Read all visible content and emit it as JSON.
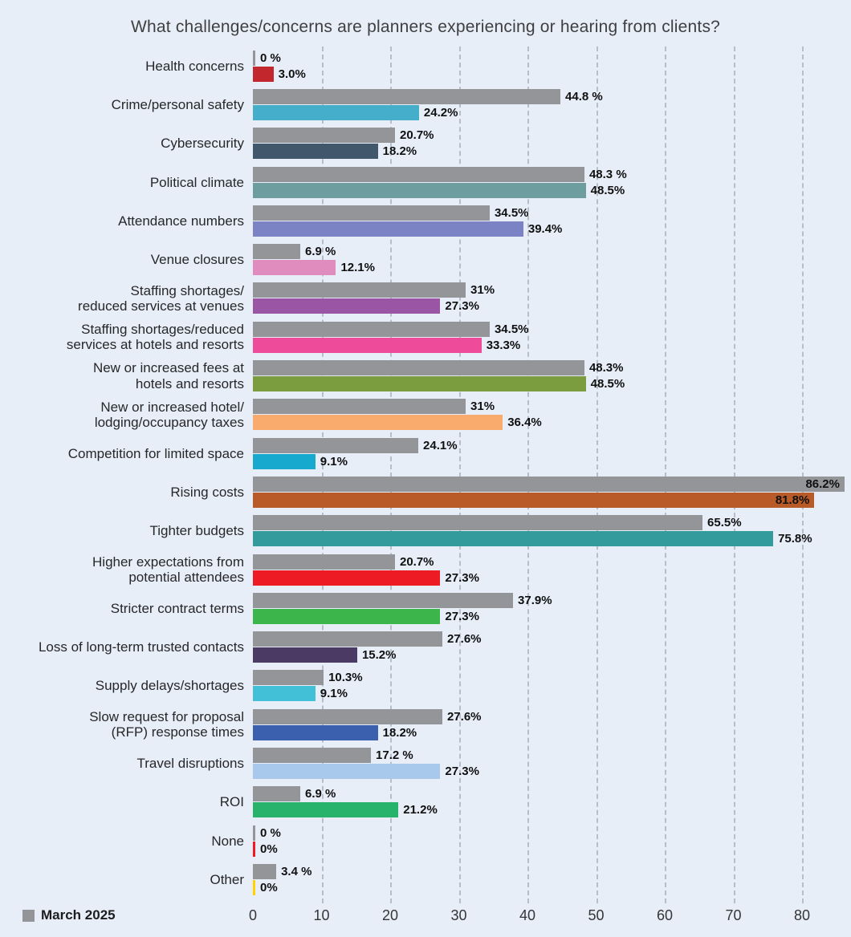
{
  "title": "What challenges/concerns are planners experiencing or hearing from clients?",
  "legend": {
    "items": [
      {
        "label": "March 2025",
        "color": "#939598"
      }
    ]
  },
  "colors": {
    "background": "#e7eef8",
    "gridline": "#b7bec9",
    "march_2025_bar": "#939598",
    "value_label": "#101010"
  },
  "chart_data": {
    "type": "bar",
    "orientation": "horizontal",
    "title": "What challenges/concerns are planners experiencing or hearing from clients?",
    "xlabel": "",
    "ylabel": "",
    "xlim": [
      0,
      87
    ],
    "x_axis_ticks": [
      "0",
      "10",
      "20",
      "30",
      "40",
      "50",
      "60",
      "70",
      "80"
    ],
    "grid": "vertical-dashed",
    "legend_position": "bottom-left",
    "series_note_visible_legend": "March 2025 (gray, top bar of each pair); second bar of each pair is individually colored with no visible legend entry",
    "categories": [
      {
        "label": "Health concerns",
        "bars": [
          {
            "value": 0,
            "display": "0 %",
            "color": "#939598"
          },
          {
            "value": 3.0,
            "display": "3.0%",
            "color": "#c1272d"
          }
        ]
      },
      {
        "label": "Crime/personal safety",
        "bars": [
          {
            "value": 44.8,
            "display": "44.8 %",
            "color": "#939598"
          },
          {
            "value": 24.2,
            "display": "24.2%",
            "color": "#45aecb"
          }
        ]
      },
      {
        "label": "Cybersecurity",
        "bars": [
          {
            "value": 20.7,
            "display": "20.7%",
            "color": "#939598"
          },
          {
            "value": 18.2,
            "display": "18.2%",
            "color": "#41576b"
          }
        ]
      },
      {
        "label": "Political climate",
        "bars": [
          {
            "value": 48.3,
            "display": "48.3 %",
            "color": "#939598"
          },
          {
            "value": 48.5,
            "display": "48.5%",
            "color": "#6d9d9e"
          }
        ]
      },
      {
        "label": "Attendance numbers",
        "bars": [
          {
            "value": 34.5,
            "display": "34.5%",
            "color": "#939598"
          },
          {
            "value": 39.4,
            "display": "39.4%",
            "color": "#7b83c4"
          }
        ]
      },
      {
        "label": "Venue closures",
        "bars": [
          {
            "value": 6.9,
            "display": "6.9 %",
            "color": "#939598"
          },
          {
            "value": 12.1,
            "display": "12.1%",
            "color": "#e18cbe"
          }
        ]
      },
      {
        "label": "Staffing shortages/\nreduced services at venues",
        "bars": [
          {
            "value": 31,
            "display": "31%",
            "color": "#939598"
          },
          {
            "value": 27.3,
            "display": "27.3%",
            "color": "#9a55a5"
          }
        ]
      },
      {
        "label": "Staffing shortages/reduced\nservices at hotels and resorts",
        "bars": [
          {
            "value": 34.5,
            "display": "34.5%",
            "color": "#939598"
          },
          {
            "value": 33.3,
            "display": "33.3%",
            "color": "#ee4c9b"
          }
        ]
      },
      {
        "label": "New or increased fees at\nhotels and resorts",
        "bars": [
          {
            "value": 48.3,
            "display": "48.3%",
            "color": "#939598"
          },
          {
            "value": 48.5,
            "display": "48.5%",
            "color": "#7b9d40"
          }
        ]
      },
      {
        "label": "New or increased hotel/\nlodging/occupancy taxes",
        "bars": [
          {
            "value": 31,
            "display": "31%",
            "color": "#939598"
          },
          {
            "value": 36.4,
            "display": "36.4%",
            "color": "#f9ab6d"
          }
        ]
      },
      {
        "label": "Competition for limited space",
        "bars": [
          {
            "value": 24.1,
            "display": "24.1%",
            "color": "#939598"
          },
          {
            "value": 9.1,
            "display": "9.1%",
            "color": "#17a9ce"
          }
        ]
      },
      {
        "label": "Rising costs",
        "bars": [
          {
            "value": 86.2,
            "display": "86.2%",
            "color": "#939598"
          },
          {
            "value": 81.8,
            "display": "81.8%",
            "color": "#b85b28"
          }
        ]
      },
      {
        "label": "Tighter budgets",
        "bars": [
          {
            "value": 65.5,
            "display": "65.5%",
            "color": "#939598"
          },
          {
            "value": 75.8,
            "display": "75.8%",
            "color": "#339b9b"
          }
        ]
      },
      {
        "label": "Higher expectations from\npotential attendees",
        "bars": [
          {
            "value": 20.7,
            "display": "20.7%",
            "color": "#939598"
          },
          {
            "value": 27.3,
            "display": "27.3%",
            "color": "#ed1c24"
          }
        ]
      },
      {
        "label": "Stricter contract terms",
        "bars": [
          {
            "value": 37.9,
            "display": "37.9%",
            "color": "#939598"
          },
          {
            "value": 27.3,
            "display": "27.3%",
            "color": "#3cb54a"
          }
        ]
      },
      {
        "label": "Loss of long-term trusted contacts",
        "bars": [
          {
            "value": 27.6,
            "display": "27.6%",
            "color": "#939598"
          },
          {
            "value": 15.2,
            "display": "15.2%",
            "color": "#4a3a64"
          }
        ]
      },
      {
        "label": "Supply delays/shortages",
        "bars": [
          {
            "value": 10.3,
            "display": "10.3%",
            "color": "#939598"
          },
          {
            "value": 9.1,
            "display": "9.1%",
            "color": "#41c0d8"
          }
        ]
      },
      {
        "label": "Slow request for proposal\n(RFP) response times",
        "bars": [
          {
            "value": 27.6,
            "display": "27.6%",
            "color": "#939598"
          },
          {
            "value": 18.2,
            "display": "18.2%",
            "color": "#3b61ae"
          }
        ]
      },
      {
        "label": "Travel disruptions",
        "bars": [
          {
            "value": 17.2,
            "display": "17.2 %",
            "color": "#939598"
          },
          {
            "value": 27.3,
            "display": "27.3%",
            "color": "#a8c8ec"
          }
        ]
      },
      {
        "label": "ROI",
        "bars": [
          {
            "value": 6.9,
            "display": "6.9 %",
            "color": "#939598"
          },
          {
            "value": 21.2,
            "display": "21.2%",
            "color": "#27b36b"
          }
        ]
      },
      {
        "label": "None",
        "bars": [
          {
            "value": 0,
            "display": "0 %",
            "color": "#939598"
          },
          {
            "value": 0,
            "display": "0%",
            "color": "#ed1c24"
          }
        ]
      },
      {
        "label": "Other",
        "bars": [
          {
            "value": 3.4,
            "display": "3.4 %",
            "color": "#939598"
          },
          {
            "value": 0,
            "display": "0%",
            "color": "#ffd200"
          }
        ]
      }
    ]
  }
}
